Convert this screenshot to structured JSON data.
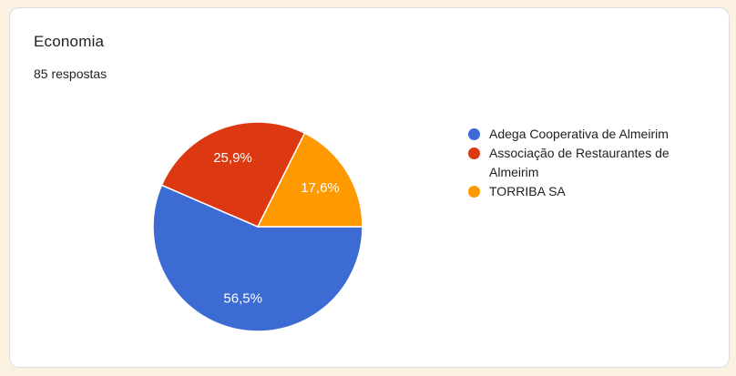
{
  "card": {
    "title": "Economia",
    "subtitle": "85 respostas"
  },
  "chart_data": {
    "type": "pie",
    "title": "Economia",
    "responses_label": "85 respostas",
    "categories": [
      "Adega Cooperativa de Almeirim",
      "Associação de Restaurantes de Almeirim",
      "TORRIBA SA"
    ],
    "values": [
      56.5,
      25.9,
      17.6
    ],
    "value_labels": [
      "56,5%",
      "25,9%",
      "17,6%"
    ],
    "colors": [
      "#3b6bd3",
      "#dc3912",
      "#ff9900"
    ],
    "start_angle_deg": 0,
    "rotation": "clockwise",
    "legend_position": "right",
    "slice_label_color": "#ffffff"
  },
  "theme": {
    "page_background": "#faf1e1",
    "card_background": "#ffffff",
    "card_border": "#dadce0",
    "text_color": "#202124"
  }
}
